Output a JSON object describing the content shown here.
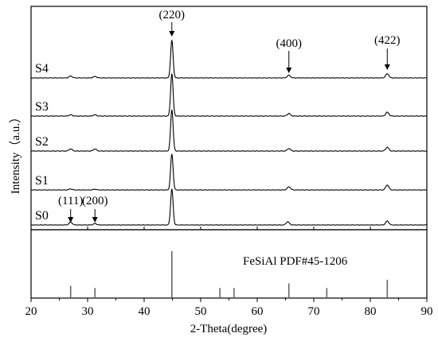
{
  "chart_data": {
    "type": "line",
    "xlabel": "2-Theta(degree)",
    "ylabel": "Intensity（a.u.）",
    "xlim": [
      20,
      90
    ],
    "xticks": [
      20,
      30,
      40,
      50,
      60,
      70,
      80,
      90
    ],
    "grid": false,
    "series": [
      {
        "name": "S0",
        "peaks": [
          {
            "x": 27.0,
            "h": 0.08
          },
          {
            "x": 31.3,
            "h": 0.04
          },
          {
            "x": 44.9,
            "h": 1.0
          },
          {
            "x": 65.4,
            "h": 0.09
          },
          {
            "x": 83.0,
            "h": 0.11
          }
        ]
      },
      {
        "name": "S1",
        "peaks": [
          {
            "x": 27.0,
            "h": 0.03
          },
          {
            "x": 31.3,
            "h": 0.02
          },
          {
            "x": 44.9,
            "h": 1.0
          },
          {
            "x": 65.6,
            "h": 0.09
          },
          {
            "x": 83.0,
            "h": 0.14
          }
        ]
      },
      {
        "name": "S2",
        "peaks": [
          {
            "x": 27.0,
            "h": 0.05
          },
          {
            "x": 31.3,
            "h": 0.05
          },
          {
            "x": 44.9,
            "h": 1.0
          },
          {
            "x": 65.6,
            "h": 0.06
          },
          {
            "x": 83.0,
            "h": 0.09
          }
        ]
      },
      {
        "name": "S3",
        "peaks": [
          {
            "x": 27.0,
            "h": 0.03
          },
          {
            "x": 31.3,
            "h": 0.03
          },
          {
            "x": 44.9,
            "h": 1.0
          },
          {
            "x": 65.6,
            "h": 0.06
          },
          {
            "x": 83.0,
            "h": 0.09
          }
        ]
      },
      {
        "name": "S4",
        "peaks": [
          {
            "x": 27.0,
            "h": 0.05
          },
          {
            "x": 31.3,
            "h": 0.04
          },
          {
            "x": 44.9,
            "h": 1.0
          },
          {
            "x": 65.6,
            "h": 0.07
          },
          {
            "x": 83.0,
            "h": 0.11
          }
        ]
      }
    ],
    "reference": {
      "label": "FeSiAl  PDF#45-1206",
      "lines": [
        {
          "x": 27.0,
          "h": 0.25
        },
        {
          "x": 31.3,
          "h": 0.2
        },
        {
          "x": 44.9,
          "h": 1.0
        },
        {
          "x": 53.4,
          "h": 0.2
        },
        {
          "x": 55.9,
          "h": 0.2
        },
        {
          "x": 65.6,
          "h": 0.3
        },
        {
          "x": 72.3,
          "h": 0.2
        },
        {
          "x": 83.0,
          "h": 0.38
        }
      ]
    },
    "annotations": [
      {
        "label": "(111)",
        "x": 27.0,
        "series": "S0"
      },
      {
        "label": "(200)",
        "x": 31.3,
        "series": "S0"
      },
      {
        "label": "(220)",
        "x": 44.9,
        "series": "S4"
      },
      {
        "label": "(400)",
        "x": 65.6,
        "series": "S4"
      },
      {
        "label": "(422)",
        "x": 83.0,
        "series": "S4"
      }
    ]
  }
}
